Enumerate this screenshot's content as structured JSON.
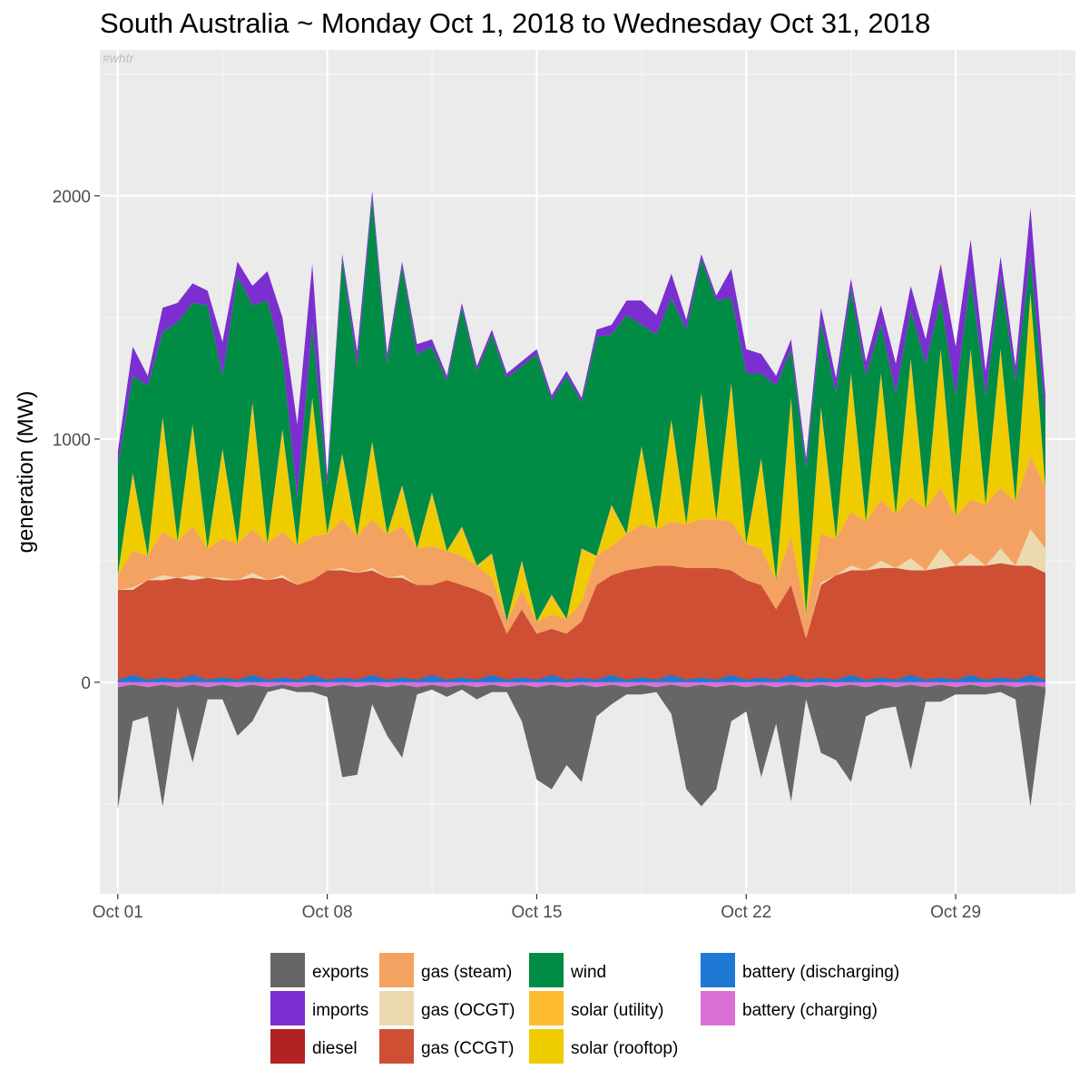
{
  "chart_data": {
    "type": "area",
    "title": "South Australia ~ Monday Oct 1, 2018 to Wednesday Oct 31, 2018",
    "watermark": "#whtr",
    "xlabel": "",
    "ylabel": "generation (MW)",
    "xlim_days": [
      -0.6,
      32.0
    ],
    "ylim": [
      -870,
      2600
    ],
    "x_ticks": [
      {
        "day": 0,
        "label": "Oct 01"
      },
      {
        "day": 7,
        "label": "Oct 08"
      },
      {
        "day": 14,
        "label": "Oct 15"
      },
      {
        "day": 21,
        "label": "Oct 22"
      },
      {
        "day": 28,
        "label": "Oct 29"
      }
    ],
    "y_ticks": [
      0,
      1000,
      2000
    ],
    "stack_order": [
      "gas (CCGT)",
      "gas (OCGT)",
      "gas (steam)",
      "solar (rooftop)",
      "solar (utility)",
      "wind",
      "imports"
    ],
    "x_days": [
      0.0,
      0.5,
      1.0,
      1.5,
      2.0,
      2.5,
      3.0,
      3.5,
      4.0,
      4.5,
      5.0,
      5.5,
      6.0,
      6.5,
      7.0,
      7.5,
      8.0,
      8.5,
      9.0,
      9.5,
      10.0,
      10.5,
      11.0,
      11.5,
      12.0,
      12.5,
      13.0,
      13.5,
      14.0,
      14.5,
      15.0,
      15.5,
      16.0,
      16.5,
      17.0,
      17.5,
      18.0,
      18.5,
      19.0,
      19.5,
      20.0,
      20.5,
      21.0,
      21.5,
      22.0,
      22.5,
      23.0,
      23.5,
      24.0,
      24.5,
      25.0,
      25.5,
      26.0,
      26.5,
      27.0,
      27.5,
      28.0,
      28.5,
      29.0,
      29.5,
      30.0,
      30.5,
      31.0
    ],
    "series": [
      {
        "name": "exports",
        "color": "#666666",
        "values": [
          -500,
          -150,
          -120,
          -500,
          -80,
          -320,
          -50,
          -60,
          -200,
          -150,
          -20,
          -15,
          -20,
          -30,
          -40,
          -380,
          -360,
          -80,
          -200,
          -300,
          -30,
          -20,
          -40,
          -20,
          -50,
          -30,
          -20,
          -150,
          -380,
          -430,
          -320,
          -400,
          -120,
          -80,
          -30,
          -40,
          -20,
          -120,
          -420,
          -500,
          -420,
          -150,
          -100,
          -380,
          -150,
          -480,
          -50,
          -280,
          -300,
          -400,
          -120,
          -100,
          -80,
          -350,
          -60,
          -70,
          -30,
          -40,
          -30,
          -30,
          -50,
          -500,
          -20
        ]
      },
      {
        "name": "imports",
        "color": "#7b2fd0",
        "values": [
          60,
          120,
          40,
          100,
          80,
          80,
          60,
          140,
          60,
          80,
          120,
          160,
          300,
          250,
          40,
          20,
          60,
          30,
          40,
          20,
          40,
          30,
          20,
          20,
          20,
          20,
          20,
          20,
          20,
          20,
          20,
          20,
          30,
          40,
          60,
          100,
          80,
          100,
          40,
          20,
          20,
          120,
          100,
          80,
          40,
          40,
          40,
          60,
          60,
          40,
          60,
          80,
          120,
          100,
          100,
          150,
          200,
          150,
          100,
          80,
          60,
          200,
          80
        ]
      },
      {
        "name": "diesel",
        "color": "#b22222",
        "values": [
          0,
          0,
          0,
          0,
          0,
          0,
          0,
          0,
          0,
          0,
          0,
          0,
          0,
          0,
          0,
          0,
          0,
          0,
          0,
          0,
          0,
          0,
          0,
          0,
          0,
          0,
          0,
          0,
          0,
          0,
          0,
          0,
          0,
          0,
          0,
          0,
          0,
          0,
          0,
          0,
          0,
          0,
          0,
          0,
          0,
          0,
          0,
          0,
          0,
          0,
          0,
          0,
          0,
          0,
          0,
          0,
          0,
          0,
          0,
          0,
          0,
          0,
          0
        ]
      },
      {
        "name": "gas (steam)",
        "color": "#f3a261",
        "values": [
          60,
          150,
          100,
          180,
          150,
          200,
          120,
          160,
          150,
          180,
          150,
          180,
          160,
          180,
          150,
          200,
          150,
          200,
          180,
          200,
          150,
          160,
          120,
          120,
          100,
          80,
          50,
          80,
          50,
          60,
          60,
          80,
          120,
          120,
          150,
          180,
          150,
          180,
          180,
          200,
          200,
          200,
          150,
          150,
          120,
          200,
          100,
          200,
          150,
          220,
          200,
          250,
          220,
          250,
          250,
          250,
          200,
          220,
          250,
          250,
          260,
          300,
          250
        ]
      },
      {
        "name": "gas (OCGT)",
        "color": "#ecd9b0",
        "values": [
          0,
          10,
          0,
          20,
          0,
          20,
          0,
          10,
          0,
          20,
          0,
          10,
          0,
          0,
          0,
          10,
          0,
          10,
          0,
          10,
          0,
          0,
          0,
          0,
          0,
          0,
          0,
          0,
          0,
          0,
          0,
          0,
          0,
          0,
          0,
          0,
          0,
          0,
          0,
          0,
          0,
          0,
          0,
          0,
          0,
          0,
          0,
          10,
          0,
          20,
          0,
          30,
          0,
          50,
          0,
          80,
          0,
          50,
          0,
          60,
          0,
          150,
          100
        ]
      },
      {
        "name": "gas (CCGT)",
        "color": "#cf4f35",
        "values": [
          380,
          380,
          420,
          420,
          430,
          420,
          430,
          420,
          420,
          430,
          420,
          430,
          400,
          420,
          460,
          460,
          450,
          460,
          430,
          430,
          400,
          400,
          420,
          400,
          380,
          350,
          200,
          300,
          200,
          220,
          200,
          250,
          400,
          440,
          460,
          470,
          480,
          480,
          470,
          470,
          470,
          460,
          420,
          400,
          300,
          400,
          180,
          400,
          440,
          460,
          460,
          470,
          470,
          460,
          460,
          470,
          480,
          480,
          480,
          490,
          480,
          480,
          450
        ]
      },
      {
        "name": "wind",
        "color": "#008c45",
        "values": [
          450,
          400,
          700,
          350,
          900,
          500,
          1000,
          300,
          1100,
          400,
          1000,
          300,
          200,
          300,
          200,
          800,
          700,
          1000,
          700,
          900,
          800,
          600,
          700,
          900,
          800,
          900,
          1000,
          800,
          1100,
          800,
          1000,
          600,
          900,
          700,
          900,
          500,
          800,
          500,
          800,
          550,
          900,
          350,
          700,
          350,
          800,
          200,
          600,
          350,
          600,
          350,
          600,
          200,
          500,
          200,
          600,
          200,
          500,
          300,
          450,
          300,
          500,
          150,
          300
        ]
      },
      {
        "name": "solar (utility)",
        "color": "#fdbb2f",
        "values": [
          0,
          20,
          0,
          20,
          0,
          20,
          0,
          20,
          0,
          20,
          0,
          20,
          0,
          20,
          0,
          20,
          0,
          20,
          0,
          20,
          0,
          20,
          0,
          20,
          0,
          20,
          0,
          20,
          0,
          20,
          0,
          20,
          0,
          20,
          0,
          20,
          0,
          20,
          0,
          20,
          0,
          20,
          0,
          20,
          0,
          20,
          0,
          20,
          0,
          20,
          0,
          20,
          0,
          20,
          0,
          20,
          0,
          20,
          0,
          20,
          0,
          20,
          0
        ]
      },
      {
        "name": "solar (rooftop)",
        "color": "#eecc00",
        "values": [
          0,
          300,
          0,
          450,
          0,
          400,
          0,
          350,
          0,
          500,
          0,
          400,
          0,
          550,
          0,
          250,
          0,
          300,
          0,
          150,
          0,
          200,
          0,
          100,
          0,
          80,
          0,
          100,
          0,
          60,
          0,
          200,
          0,
          150,
          0,
          300,
          0,
          400,
          0,
          500,
          0,
          550,
          0,
          350,
          0,
          550,
          0,
          500,
          0,
          550,
          0,
          500,
          0,
          550,
          0,
          550,
          0,
          600,
          0,
          550,
          0,
          650,
          0
        ]
      },
      {
        "name": "battery (discharging)",
        "color": "#1f78d4",
        "values": [
          10,
          30,
          10,
          20,
          10,
          30,
          10,
          20,
          10,
          30,
          10,
          20,
          10,
          30,
          10,
          20,
          10,
          30,
          10,
          20,
          10,
          30,
          10,
          20,
          10,
          30,
          10,
          20,
          10,
          30,
          10,
          20,
          10,
          30,
          10,
          20,
          10,
          30,
          10,
          20,
          10,
          30,
          10,
          20,
          10,
          30,
          10,
          20,
          10,
          30,
          10,
          20,
          10,
          30,
          10,
          20,
          10,
          30,
          10,
          20,
          10,
          30,
          10
        ]
      },
      {
        "name": "battery (charging)",
        "color": "#da70d6",
        "values": [
          -20,
          -10,
          -20,
          -10,
          -20,
          -10,
          -20,
          -10,
          -20,
          -10,
          -20,
          -10,
          -20,
          -10,
          -20,
          -10,
          -20,
          -10,
          -20,
          -10,
          -20,
          -10,
          -20,
          -10,
          -20,
          -10,
          -20,
          -10,
          -20,
          -10,
          -20,
          -10,
          -20,
          -10,
          -20,
          -10,
          -20,
          -10,
          -20,
          -10,
          -20,
          -10,
          -20,
          -10,
          -20,
          -10,
          -20,
          -10,
          -20,
          -10,
          -20,
          -10,
          -20,
          -10,
          -20,
          -10,
          -20,
          -10,
          -20,
          -10,
          -20,
          -10,
          -20
        ]
      }
    ],
    "legend": {
      "placement": "bottom",
      "columns": [
        [
          "exports",
          "imports",
          "diesel"
        ],
        [
          "gas (steam)",
          "gas (OCGT)",
          "gas (CCGT)"
        ],
        [
          "wind",
          "solar (utility)",
          "solar (rooftop)"
        ],
        [
          "battery (discharging)",
          "battery (charging)"
        ]
      ]
    }
  }
}
